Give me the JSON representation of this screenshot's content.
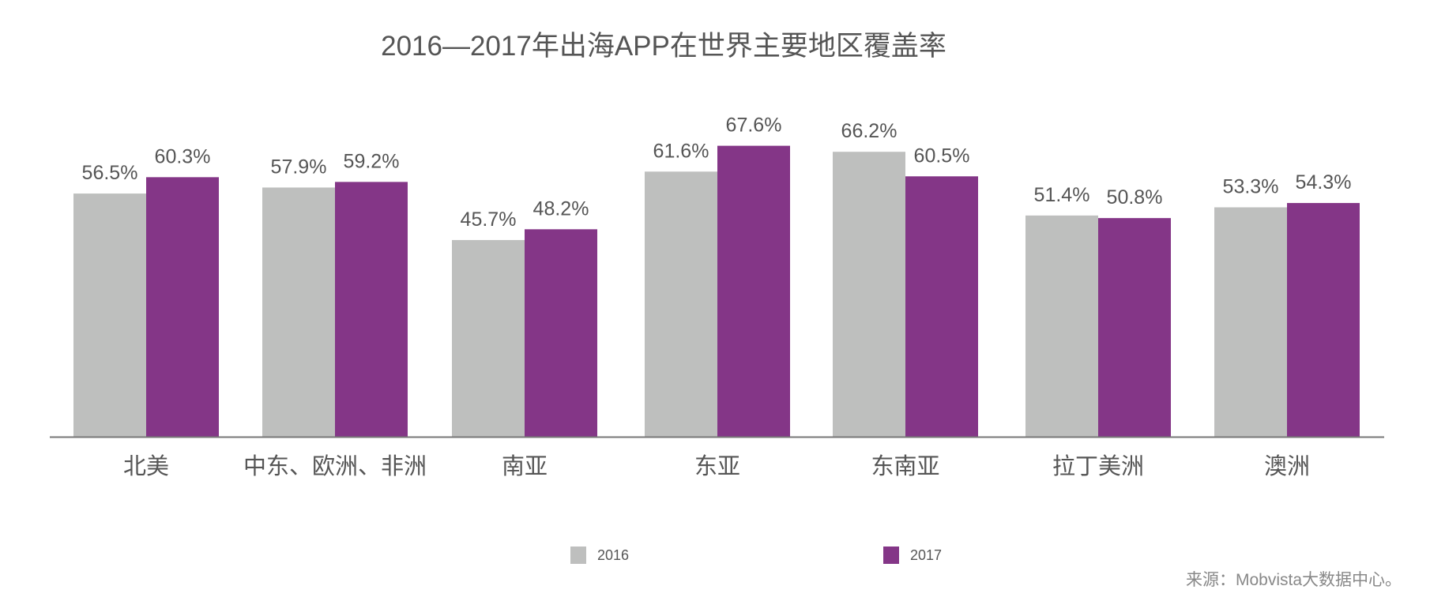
{
  "chart_data": {
    "type": "bar",
    "title": "2016—2017年出海APP在世界主要地区覆盖率",
    "categories": [
      "北美",
      "中东、欧洲、非洲",
      "南亚",
      "东亚",
      "东南亚",
      "拉丁美洲",
      "澳洲"
    ],
    "series": [
      {
        "name": "2016",
        "color": "#bebfbe",
        "values": [
          56.5,
          57.9,
          45.7,
          61.6,
          66.2,
          51.4,
          53.3
        ]
      },
      {
        "name": "2017",
        "color": "#843687",
        "values": [
          60.3,
          59.2,
          48.2,
          67.6,
          60.5,
          50.8,
          54.3
        ]
      }
    ],
    "value_suffix": "%",
    "xlabel": "",
    "ylabel": "",
    "ylim": [
      0,
      100
    ],
    "grid": false,
    "legend_position": "bottom",
    "source": "来源：Mobvista大数据中心。"
  }
}
